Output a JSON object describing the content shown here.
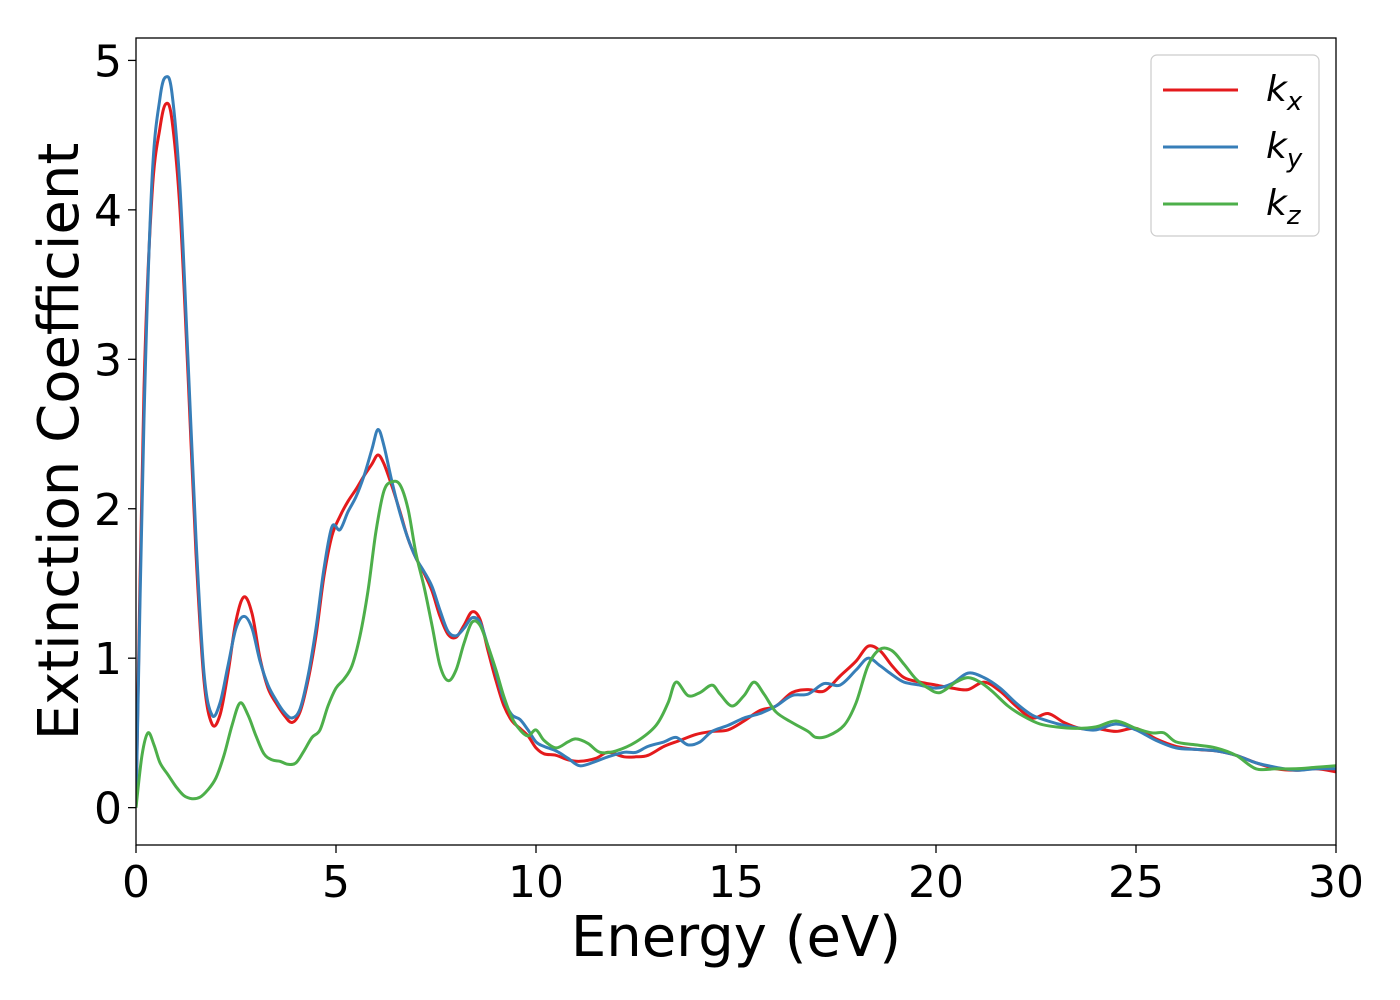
{
  "chart_data": {
    "type": "line",
    "xlabel": "Energy (eV)",
    "ylabel": "Extinction Coefficient",
    "xlim": [
      0,
      30
    ],
    "ylim": [
      -0.25,
      5.15
    ],
    "xticks": [
      0,
      5,
      10,
      15,
      20,
      25,
      30
    ],
    "yticks": [
      0,
      1,
      2,
      3,
      4,
      5
    ],
    "grid": false,
    "legend_position": "top-right",
    "series": [
      {
        "name": "k_x",
        "label_base": "k",
        "label_sub": "x",
        "color": "#e41a1c",
        "points": [
          [
            0,
            0
          ],
          [
            0.2,
            2.8
          ],
          [
            0.4,
            4.1
          ],
          [
            0.6,
            4.55
          ],
          [
            0.75,
            4.71
          ],
          [
            0.9,
            4.6
          ],
          [
            1.1,
            4.0
          ],
          [
            1.3,
            2.9
          ],
          [
            1.5,
            1.7
          ],
          [
            1.7,
            0.85
          ],
          [
            1.9,
            0.56
          ],
          [
            2.1,
            0.62
          ],
          [
            2.3,
            0.9
          ],
          [
            2.5,
            1.25
          ],
          [
            2.7,
            1.41
          ],
          [
            2.9,
            1.3
          ],
          [
            3.1,
            1.0
          ],
          [
            3.3,
            0.8
          ],
          [
            3.5,
            0.7
          ],
          [
            3.7,
            0.62
          ],
          [
            3.9,
            0.57
          ],
          [
            4.1,
            0.64
          ],
          [
            4.3,
            0.85
          ],
          [
            4.5,
            1.15
          ],
          [
            4.7,
            1.55
          ],
          [
            4.9,
            1.82
          ],
          [
            5.1,
            1.95
          ],
          [
            5.3,
            2.05
          ],
          [
            5.5,
            2.13
          ],
          [
            5.7,
            2.22
          ],
          [
            5.9,
            2.3
          ],
          [
            6.05,
            2.36
          ],
          [
            6.2,
            2.3
          ],
          [
            6.4,
            2.15
          ],
          [
            6.6,
            1.98
          ],
          [
            6.8,
            1.8
          ],
          [
            7.0,
            1.67
          ],
          [
            7.2,
            1.57
          ],
          [
            7.4,
            1.45
          ],
          [
            7.6,
            1.28
          ],
          [
            7.8,
            1.16
          ],
          [
            8.0,
            1.14
          ],
          [
            8.2,
            1.22
          ],
          [
            8.4,
            1.31
          ],
          [
            8.6,
            1.26
          ],
          [
            8.8,
            1.05
          ],
          [
            9.0,
            0.85
          ],
          [
            9.2,
            0.68
          ],
          [
            9.4,
            0.58
          ],
          [
            9.6,
            0.53
          ],
          [
            9.8,
            0.48
          ],
          [
            10.0,
            0.4
          ],
          [
            10.2,
            0.36
          ],
          [
            10.5,
            0.35
          ],
          [
            10.8,
            0.32
          ],
          [
            11.1,
            0.31
          ],
          [
            11.5,
            0.33
          ],
          [
            11.8,
            0.37
          ],
          [
            12.2,
            0.34
          ],
          [
            12.5,
            0.34
          ],
          [
            12.8,
            0.35
          ],
          [
            13.2,
            0.41
          ],
          [
            13.6,
            0.45
          ],
          [
            14.0,
            0.49
          ],
          [
            14.4,
            0.51
          ],
          [
            14.8,
            0.52
          ],
          [
            15.2,
            0.58
          ],
          [
            15.6,
            0.65
          ],
          [
            16.0,
            0.68
          ],
          [
            16.4,
            0.77
          ],
          [
            16.8,
            0.79
          ],
          [
            17.2,
            0.78
          ],
          [
            17.6,
            0.88
          ],
          [
            18.0,
            0.98
          ],
          [
            18.3,
            1.08
          ],
          [
            18.6,
            1.05
          ],
          [
            18.9,
            0.95
          ],
          [
            19.2,
            0.87
          ],
          [
            19.6,
            0.84
          ],
          [
            20.0,
            0.82
          ],
          [
            20.4,
            0.8
          ],
          [
            20.8,
            0.79
          ],
          [
            21.2,
            0.84
          ],
          [
            21.6,
            0.78
          ],
          [
            22.0,
            0.68
          ],
          [
            22.4,
            0.6
          ],
          [
            22.8,
            0.63
          ],
          [
            23.2,
            0.57
          ],
          [
            23.6,
            0.53
          ],
          [
            24.0,
            0.53
          ],
          [
            24.5,
            0.51
          ],
          [
            25.0,
            0.53
          ],
          [
            25.5,
            0.46
          ],
          [
            26.0,
            0.41
          ],
          [
            26.5,
            0.39
          ],
          [
            27.0,
            0.38
          ],
          [
            27.5,
            0.35
          ],
          [
            28.0,
            0.3
          ],
          [
            28.5,
            0.26
          ],
          [
            29.0,
            0.25
          ],
          [
            29.5,
            0.26
          ],
          [
            30.0,
            0.24
          ]
        ]
      },
      {
        "name": "k_y",
        "label_base": "k",
        "label_sub": "y",
        "color": "#377eb8",
        "points": [
          [
            0,
            0
          ],
          [
            0.2,
            2.6
          ],
          [
            0.4,
            4.2
          ],
          [
            0.6,
            4.75
          ],
          [
            0.75,
            4.89
          ],
          [
            0.9,
            4.78
          ],
          [
            1.1,
            4.15
          ],
          [
            1.3,
            3.0
          ],
          [
            1.5,
            1.8
          ],
          [
            1.7,
            0.9
          ],
          [
            1.9,
            0.62
          ],
          [
            2.1,
            0.7
          ],
          [
            2.3,
            0.95
          ],
          [
            2.5,
            1.2
          ],
          [
            2.7,
            1.28
          ],
          [
            2.9,
            1.2
          ],
          [
            3.1,
            0.98
          ],
          [
            3.3,
            0.82
          ],
          [
            3.5,
            0.72
          ],
          [
            3.7,
            0.64
          ],
          [
            3.9,
            0.6
          ],
          [
            4.1,
            0.66
          ],
          [
            4.3,
            0.88
          ],
          [
            4.5,
            1.2
          ],
          [
            4.7,
            1.6
          ],
          [
            4.9,
            1.88
          ],
          [
            5.1,
            1.86
          ],
          [
            5.3,
            1.98
          ],
          [
            5.5,
            2.08
          ],
          [
            5.7,
            2.22
          ],
          [
            5.9,
            2.4
          ],
          [
            6.05,
            2.53
          ],
          [
            6.2,
            2.42
          ],
          [
            6.4,
            2.18
          ],
          [
            6.6,
            1.97
          ],
          [
            6.8,
            1.8
          ],
          [
            7.0,
            1.67
          ],
          [
            7.2,
            1.58
          ],
          [
            7.4,
            1.48
          ],
          [
            7.6,
            1.32
          ],
          [
            7.8,
            1.18
          ],
          [
            8.0,
            1.15
          ],
          [
            8.2,
            1.2
          ],
          [
            8.4,
            1.27
          ],
          [
            8.6,
            1.24
          ],
          [
            8.8,
            1.08
          ],
          [
            9.0,
            0.9
          ],
          [
            9.2,
            0.72
          ],
          [
            9.4,
            0.62
          ],
          [
            9.6,
            0.59
          ],
          [
            9.8,
            0.52
          ],
          [
            10.0,
            0.44
          ],
          [
            10.2,
            0.41
          ],
          [
            10.5,
            0.38
          ],
          [
            10.8,
            0.33
          ],
          [
            11.1,
            0.28
          ],
          [
            11.5,
            0.31
          ],
          [
            11.8,
            0.34
          ],
          [
            12.2,
            0.37
          ],
          [
            12.5,
            0.37
          ],
          [
            12.8,
            0.41
          ],
          [
            13.2,
            0.44
          ],
          [
            13.5,
            0.47
          ],
          [
            13.8,
            0.42
          ],
          [
            14.1,
            0.44
          ],
          [
            14.4,
            0.51
          ],
          [
            14.8,
            0.55
          ],
          [
            15.2,
            0.6
          ],
          [
            15.6,
            0.63
          ],
          [
            16.0,
            0.68
          ],
          [
            16.4,
            0.75
          ],
          [
            16.8,
            0.76
          ],
          [
            17.2,
            0.83
          ],
          [
            17.6,
            0.82
          ],
          [
            18.0,
            0.92
          ],
          [
            18.3,
            1.0
          ],
          [
            18.6,
            0.95
          ],
          [
            18.9,
            0.89
          ],
          [
            19.2,
            0.84
          ],
          [
            19.6,
            0.82
          ],
          [
            20.0,
            0.8
          ],
          [
            20.4,
            0.83
          ],
          [
            20.8,
            0.9
          ],
          [
            21.2,
            0.87
          ],
          [
            21.6,
            0.8
          ],
          [
            22.0,
            0.7
          ],
          [
            22.4,
            0.62
          ],
          [
            22.8,
            0.58
          ],
          [
            23.2,
            0.55
          ],
          [
            23.6,
            0.53
          ],
          [
            24.0,
            0.52
          ],
          [
            24.5,
            0.56
          ],
          [
            25.0,
            0.52
          ],
          [
            25.5,
            0.45
          ],
          [
            26.0,
            0.4
          ],
          [
            26.5,
            0.39
          ],
          [
            27.0,
            0.38
          ],
          [
            27.5,
            0.35
          ],
          [
            28.0,
            0.3
          ],
          [
            28.5,
            0.27
          ],
          [
            29.0,
            0.25
          ],
          [
            29.5,
            0.26
          ],
          [
            30.0,
            0.26
          ]
        ]
      },
      {
        "name": "k_z",
        "label_base": "k",
        "label_sub": "z",
        "color": "#4daf4a",
        "points": [
          [
            0,
            0
          ],
          [
            0.15,
            0.35
          ],
          [
            0.3,
            0.5
          ],
          [
            0.45,
            0.42
          ],
          [
            0.6,
            0.3
          ],
          [
            0.8,
            0.22
          ],
          [
            1.0,
            0.14
          ],
          [
            1.2,
            0.08
          ],
          [
            1.4,
            0.06
          ],
          [
            1.6,
            0.07
          ],
          [
            1.8,
            0.12
          ],
          [
            2.0,
            0.2
          ],
          [
            2.2,
            0.35
          ],
          [
            2.4,
            0.55
          ],
          [
            2.6,
            0.7
          ],
          [
            2.8,
            0.62
          ],
          [
            3.0,
            0.48
          ],
          [
            3.2,
            0.36
          ],
          [
            3.4,
            0.32
          ],
          [
            3.6,
            0.31
          ],
          [
            3.8,
            0.29
          ],
          [
            4.0,
            0.3
          ],
          [
            4.2,
            0.38
          ],
          [
            4.4,
            0.47
          ],
          [
            4.6,
            0.52
          ],
          [
            4.8,
            0.68
          ],
          [
            5.0,
            0.8
          ],
          [
            5.2,
            0.86
          ],
          [
            5.4,
            0.95
          ],
          [
            5.6,
            1.15
          ],
          [
            5.8,
            1.45
          ],
          [
            6.0,
            1.85
          ],
          [
            6.2,
            2.12
          ],
          [
            6.4,
            2.18
          ],
          [
            6.6,
            2.16
          ],
          [
            6.8,
            2.0
          ],
          [
            7.0,
            1.7
          ],
          [
            7.2,
            1.48
          ],
          [
            7.4,
            1.22
          ],
          [
            7.6,
            0.95
          ],
          [
            7.8,
            0.85
          ],
          [
            8.0,
            0.92
          ],
          [
            8.2,
            1.1
          ],
          [
            8.4,
            1.24
          ],
          [
            8.6,
            1.22
          ],
          [
            8.8,
            1.08
          ],
          [
            9.0,
            0.92
          ],
          [
            9.2,
            0.74
          ],
          [
            9.4,
            0.6
          ],
          [
            9.6,
            0.52
          ],
          [
            9.8,
            0.48
          ],
          [
            10.0,
            0.52
          ],
          [
            10.2,
            0.45
          ],
          [
            10.5,
            0.4
          ],
          [
            10.8,
            0.44
          ],
          [
            11.0,
            0.46
          ],
          [
            11.3,
            0.43
          ],
          [
            11.6,
            0.37
          ],
          [
            12.0,
            0.38
          ],
          [
            12.5,
            0.44
          ],
          [
            13.0,
            0.55
          ],
          [
            13.3,
            0.7
          ],
          [
            13.5,
            0.84
          ],
          [
            13.8,
            0.75
          ],
          [
            14.1,
            0.77
          ],
          [
            14.4,
            0.82
          ],
          [
            14.6,
            0.76
          ],
          [
            14.9,
            0.68
          ],
          [
            15.2,
            0.75
          ],
          [
            15.45,
            0.84
          ],
          [
            15.7,
            0.76
          ],
          [
            16.0,
            0.64
          ],
          [
            16.4,
            0.57
          ],
          [
            16.8,
            0.51
          ],
          [
            17.0,
            0.47
          ],
          [
            17.3,
            0.48
          ],
          [
            17.7,
            0.55
          ],
          [
            18.0,
            0.7
          ],
          [
            18.3,
            0.95
          ],
          [
            18.6,
            1.06
          ],
          [
            18.9,
            1.05
          ],
          [
            19.2,
            0.96
          ],
          [
            19.5,
            0.86
          ],
          [
            19.8,
            0.8
          ],
          [
            20.1,
            0.77
          ],
          [
            20.5,
            0.84
          ],
          [
            20.8,
            0.87
          ],
          [
            21.1,
            0.84
          ],
          [
            21.4,
            0.78
          ],
          [
            21.8,
            0.68
          ],
          [
            22.2,
            0.61
          ],
          [
            22.6,
            0.56
          ],
          [
            23.0,
            0.54
          ],
          [
            23.5,
            0.53
          ],
          [
            24.0,
            0.54
          ],
          [
            24.5,
            0.58
          ],
          [
            25.0,
            0.53
          ],
          [
            25.4,
            0.5
          ],
          [
            25.7,
            0.5
          ],
          [
            26.0,
            0.44
          ],
          [
            26.5,
            0.42
          ],
          [
            27.0,
            0.4
          ],
          [
            27.5,
            0.35
          ],
          [
            28.0,
            0.26
          ],
          [
            28.5,
            0.26
          ],
          [
            29.0,
            0.26
          ],
          [
            29.5,
            0.27
          ],
          [
            30.0,
            0.28
          ]
        ]
      }
    ]
  }
}
